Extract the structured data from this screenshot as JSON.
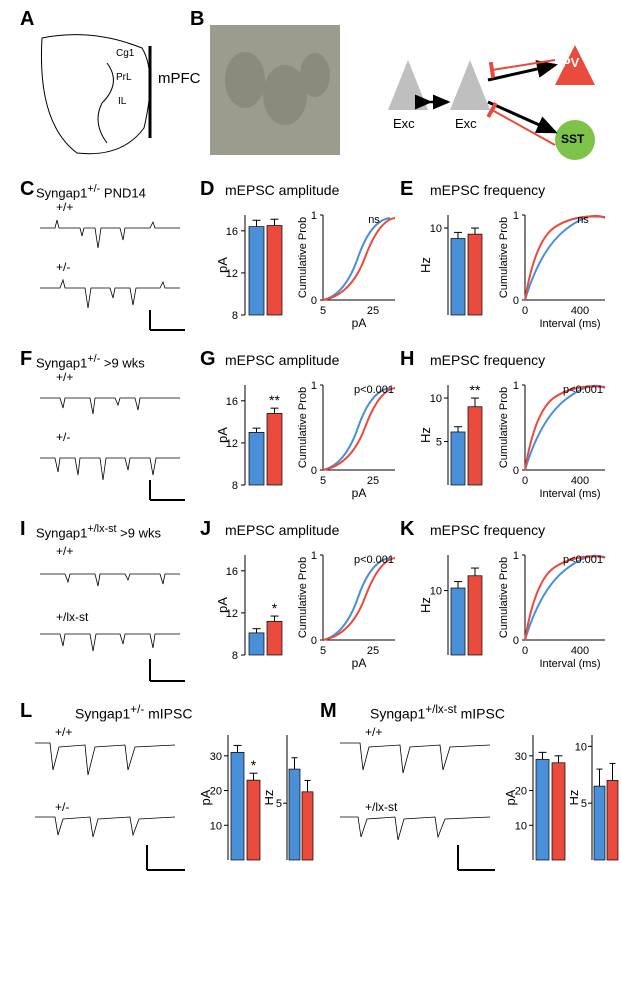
{
  "labels": {
    "A": "A",
    "B": "B",
    "C": "C",
    "D": "D",
    "E": "E",
    "F": "F",
    "G": "G",
    "H": "H",
    "I": "I",
    "J": "J",
    "K": "K",
    "L": "L",
    "M": "M"
  },
  "A": {
    "region_labels": {
      "cg1": "Cg1",
      "prl": "PrL",
      "il": "IL",
      "mpfc": "mPFC"
    }
  },
  "B": {
    "legend": {
      "exc1": "Exc",
      "exc2": "Exc",
      "pv": "PV",
      "sst": "SST"
    },
    "colors": {
      "exc": "#bfbfbf",
      "pv": "#e94b3c",
      "sst": "#7fc24a",
      "arrow_black": "#000",
      "arrow_red": "#e94b3c"
    }
  },
  "rowC": {
    "strain": "Syngap1",
    "sup": "+/-",
    "age": "PND14",
    "wt": "+/+",
    "ko": "+/-"
  },
  "rowF": {
    "strain": "Syngap1",
    "sup": "+/-",
    "age": ">9 wks",
    "wt": "+/+",
    "ko": "+/-"
  },
  "rowI": {
    "strain": "Syngap1",
    "sup": "+/lx-st",
    "age": ">9 wks",
    "wt": "+/+",
    "ko": "+/lx-st"
  },
  "amp": {
    "title": "mEPSC amplitude",
    "unit": "pA",
    "yticks": [
      8,
      12,
      16
    ],
    "D": {
      "blue": 16.4,
      "red": 16.5,
      "err_b": 0.6,
      "err_r": 0.6,
      "sig": "",
      "pval": "ns",
      "xticks": [
        5,
        25
      ]
    },
    "G": {
      "blue": 13.0,
      "red": 14.8,
      "err_b": 0.4,
      "err_r": 0.5,
      "sig": "**",
      "pval": "p<0.001",
      "xticks": [
        5,
        25
      ]
    },
    "J": {
      "blue": 10.1,
      "red": 11.2,
      "err_b": 0.4,
      "err_r": 0.5,
      "sig": "*",
      "pval": "p<0.001",
      "xticks": [
        5,
        25
      ]
    }
  },
  "freq": {
    "title": "mEPSC frequency",
    "unit": "Hz",
    "yticks_CE": [
      10
    ],
    "yticks_GH": [
      5,
      10
    ],
    "yticks_JK": [
      10
    ],
    "E": {
      "blue": 8.8,
      "red": 9.3,
      "err_b": 0.7,
      "err_r": 0.7,
      "sig": "",
      "pval": "ns",
      "xlabel": "Interval (ms)",
      "xticks": [
        0,
        400
      ]
    },
    "H": {
      "blue": 6.1,
      "red": 9.0,
      "err_b": 0.6,
      "err_r": 1.0,
      "sig": "**",
      "pval": "p<0.001",
      "xlabel": "Interval (ms)",
      "xticks": [
        0,
        400
      ]
    },
    "K": {
      "blue": 10.4,
      "red": 12.3,
      "err_b": 1.0,
      "err_r": 1.2,
      "sig": "",
      "pval": "p<0.001",
      "xlabel": "Interval (ms)",
      "xticks": [
        0,
        400
      ]
    }
  },
  "L": {
    "title": "Syngap1",
    "sup": "+/-",
    "rest": " mIPSC",
    "wt": "+/+",
    "ko": "+/-",
    "amp_unit": "pA",
    "amp_ticks": [
      10,
      20,
      30
    ],
    "amp_blue": 31,
    "amp_red": 23,
    "amp_err_b": 2,
    "amp_err_r": 2,
    "amp_sig": "*",
    "freq_unit": "Hz",
    "freq_ticks": [
      5
    ],
    "freq_blue": 8,
    "freq_red": 6,
    "freq_err_b": 1,
    "freq_err_r": 1
  },
  "M": {
    "title": "Syngap1",
    "sup": "+/lx-st",
    "rest": " mIPSC",
    "wt": "+/+",
    "ko": "+/lx-st",
    "amp_unit": "pA",
    "amp_ticks": [
      10,
      20,
      30
    ],
    "amp_blue": 29,
    "amp_red": 28,
    "amp_err_b": 2,
    "amp_err_r": 2,
    "freq_unit": "Hz",
    "freq_ticks": [
      5,
      10
    ],
    "freq_blue": 6.5,
    "freq_red": 7,
    "freq_err_b": 1.5,
    "freq_err_r": 1.5
  },
  "cum_label": "Cumulative Prob",
  "colors": {
    "blue": "#4a90d9",
    "red": "#e94b3c"
  }
}
